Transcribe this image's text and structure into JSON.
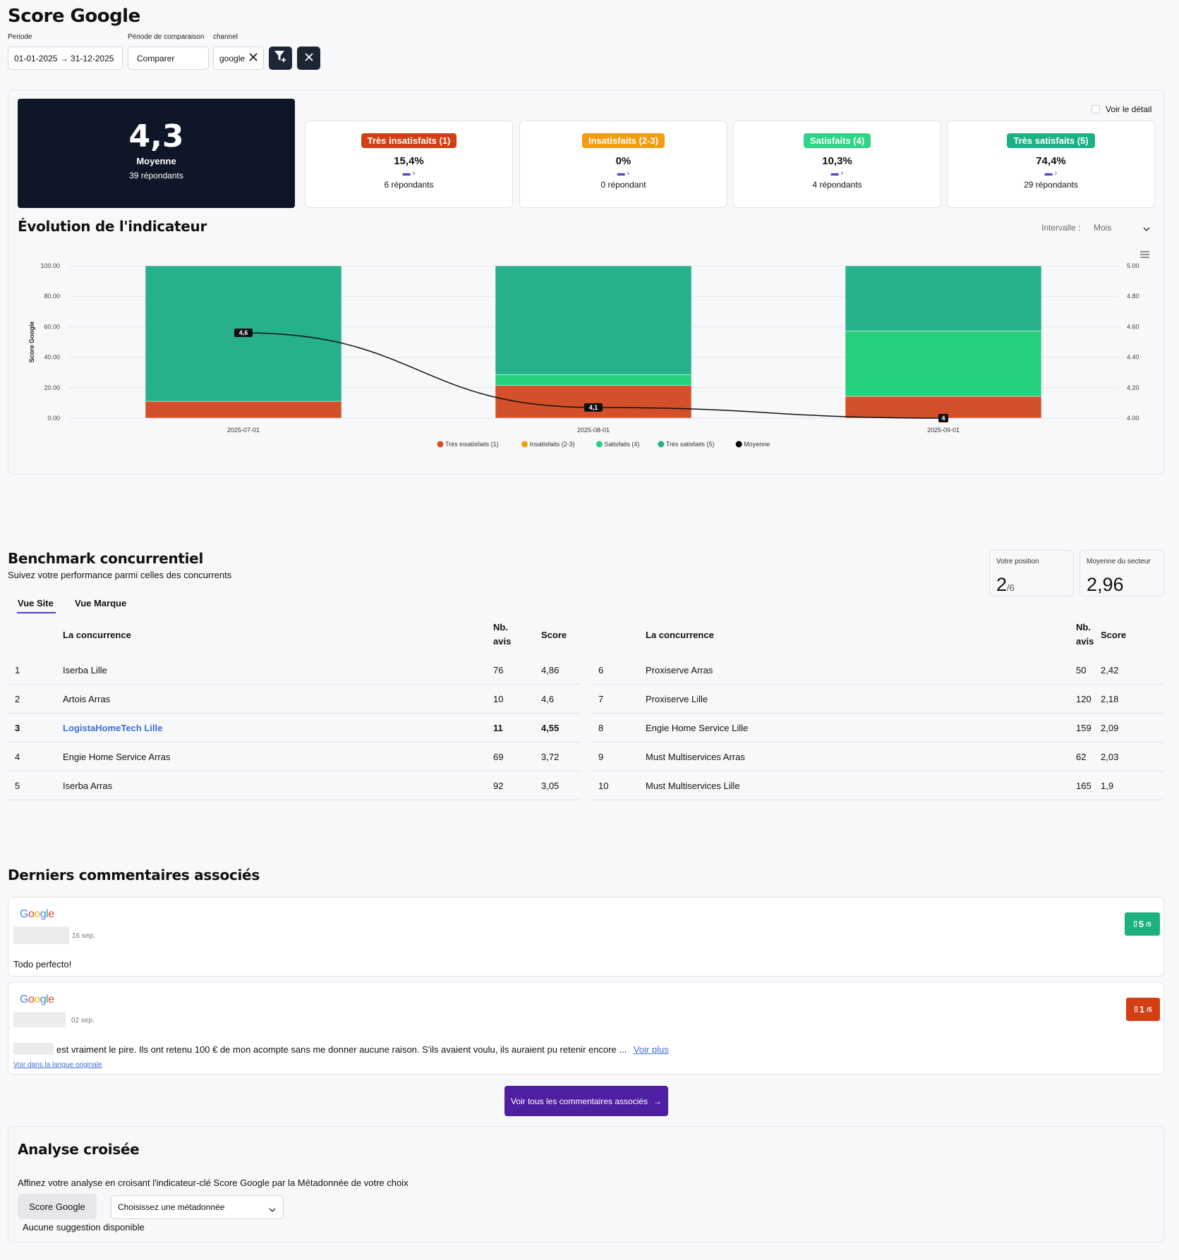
{
  "page": {
    "title": "Score Google"
  },
  "filters": {
    "period_label": "Periode",
    "period_value": "01-01-2025 → 31-12-2025",
    "comparison_label": "Période de comparaison",
    "comparison_value": "Comparer",
    "channel_label": "channel",
    "channel_value": "google"
  },
  "summary": {
    "average": "4,3",
    "average_label": "Moyenne",
    "respondents": "39 répondants",
    "detail_toggle": "Voir le détail",
    "segments": [
      {
        "label": "Très insatisfaits (1)",
        "pct": "15,4%",
        "respondents": "6 répondants",
        "color": "#d23f12"
      },
      {
        "label": "Insatisfaits (2-3)",
        "pct": "0%",
        "respondents": "0 répondant",
        "color": "#f29c12"
      },
      {
        "label": "Satisfaits (4)",
        "pct": "10,3%",
        "respondents": "4 répondants",
        "color": "#2fd487"
      },
      {
        "label": "Très satisfaits (5)",
        "pct": "74,4%",
        "respondents": "29 répondants",
        "color": "#1bb185"
      }
    ]
  },
  "evolution": {
    "title": "Évolution de l'indicateur",
    "interval_label": "Intervalle :",
    "interval_value": "Mois"
  },
  "chart_data": {
    "type": "bar",
    "stacked": true,
    "categories": [
      "2025-07-01",
      "2025-08-01",
      "2025-09-01"
    ],
    "ylabel": "Score Google",
    "ylim": [
      0,
      100
    ],
    "y2lim": [
      4,
      5
    ],
    "y_ticks": [
      "0.00",
      "20.00",
      "40.00",
      "60.00",
      "80.00",
      "100.00"
    ],
    "y2_ticks": [
      "4.00",
      "4.20",
      "4.40",
      "4.60",
      "4.80",
      "5.00"
    ],
    "series": [
      {
        "name": "Très insatisfaits (1)",
        "values": [
          11.1,
          21.4,
          14.3
        ],
        "color": "#d4502a"
      },
      {
        "name": "Insatisfaits (2-3)",
        "values": [
          0,
          0,
          0
        ],
        "color": "#f29c12"
      },
      {
        "name": "Satisfaits (4)",
        "values": [
          0,
          7.1,
          42.9
        ],
        "color": "#26d07c"
      },
      {
        "name": "Très satisfaits (5)",
        "values": [
          88.9,
          71.5,
          42.8
        ],
        "color": "#27b08b"
      }
    ],
    "line": {
      "name": "Moyenne",
      "values": [
        4.56,
        4.07,
        4.0
      ],
      "labels": [
        "4,6",
        "4,1",
        "4"
      ],
      "color": "#111111"
    },
    "legend_position": "bottom",
    "grid": true
  },
  "benchmark": {
    "title": "Benchmark concurrentiel",
    "subtitle": "Suivez votre performance parmi celles des concurrents",
    "position_label": "Votre position",
    "position_value": "2",
    "position_total": "/6",
    "sector_label": "Moyenne du secteur",
    "sector_value": "2,96",
    "tabs": [
      "Vue Site",
      "Vue Marque"
    ],
    "col_name": "La concurrence",
    "col_count_1": "Nb.",
    "col_count_2": "avis",
    "col_score": "Score",
    "left_rows": [
      {
        "rank": "1",
        "name": "Iserba Lille",
        "count": "76",
        "score": "4,86",
        "highlight": false
      },
      {
        "rank": "2",
        "name": "Artois Arras",
        "count": "10",
        "score": "4,6",
        "highlight": false
      },
      {
        "rank": "3",
        "name": "LogistaHomeTech Lille",
        "count": "11",
        "score": "4,55",
        "highlight": true
      },
      {
        "rank": "4",
        "name": "Engie Home Service Arras",
        "count": "69",
        "score": "3,72",
        "highlight": false
      },
      {
        "rank": "5",
        "name": "Iserba Arras",
        "count": "92",
        "score": "3,05",
        "highlight": false
      }
    ],
    "right_rows": [
      {
        "rank": "6",
        "name": "Proxiserve Arras",
        "count": "50",
        "score": "2,42"
      },
      {
        "rank": "7",
        "name": "Proxiserve Lille",
        "count": "120",
        "score": "2,18"
      },
      {
        "rank": "8",
        "name": "Engie Home Service Lille",
        "count": "159",
        "score": "2,09"
      },
      {
        "rank": "9",
        "name": "Must Multiservices Arras",
        "count": "62",
        "score": "2,03"
      },
      {
        "rank": "10",
        "name": "Must Multiservices Lille",
        "count": "165",
        "score": "1,9"
      }
    ]
  },
  "comments": {
    "title": "Derniers commentaires associés",
    "items": [
      {
        "source": "Google",
        "date": "16 sep.",
        "text": "Todo perfecto!",
        "rating": "5",
        "rating_max": "/5",
        "color": "#1cb27d"
      },
      {
        "source": "Google",
        "date": "02 sep.",
        "text": "est vraiment le pire. Ils ont retenu 100 € de mon acompte sans me donner aucune raison. S'ils avaient voulu, ils auraient pu retenir encore ...",
        "more": "Voir plus",
        "original": "Voir dans la langue originale",
        "rating": "1",
        "rating_max": "/5",
        "color": "#d23f12"
      }
    ],
    "see_all": "Voir tous les commentaires associés"
  },
  "cross": {
    "title": "Analyse croisée",
    "description": "Affinez votre analyse en croisant l'indicateur-clé Score Google par la Métadonnée de votre choix",
    "chip": "Score Google",
    "select_placeholder": "Choisissez une métadonnée",
    "no_suggestion": "Aucune suggestion disponible"
  }
}
